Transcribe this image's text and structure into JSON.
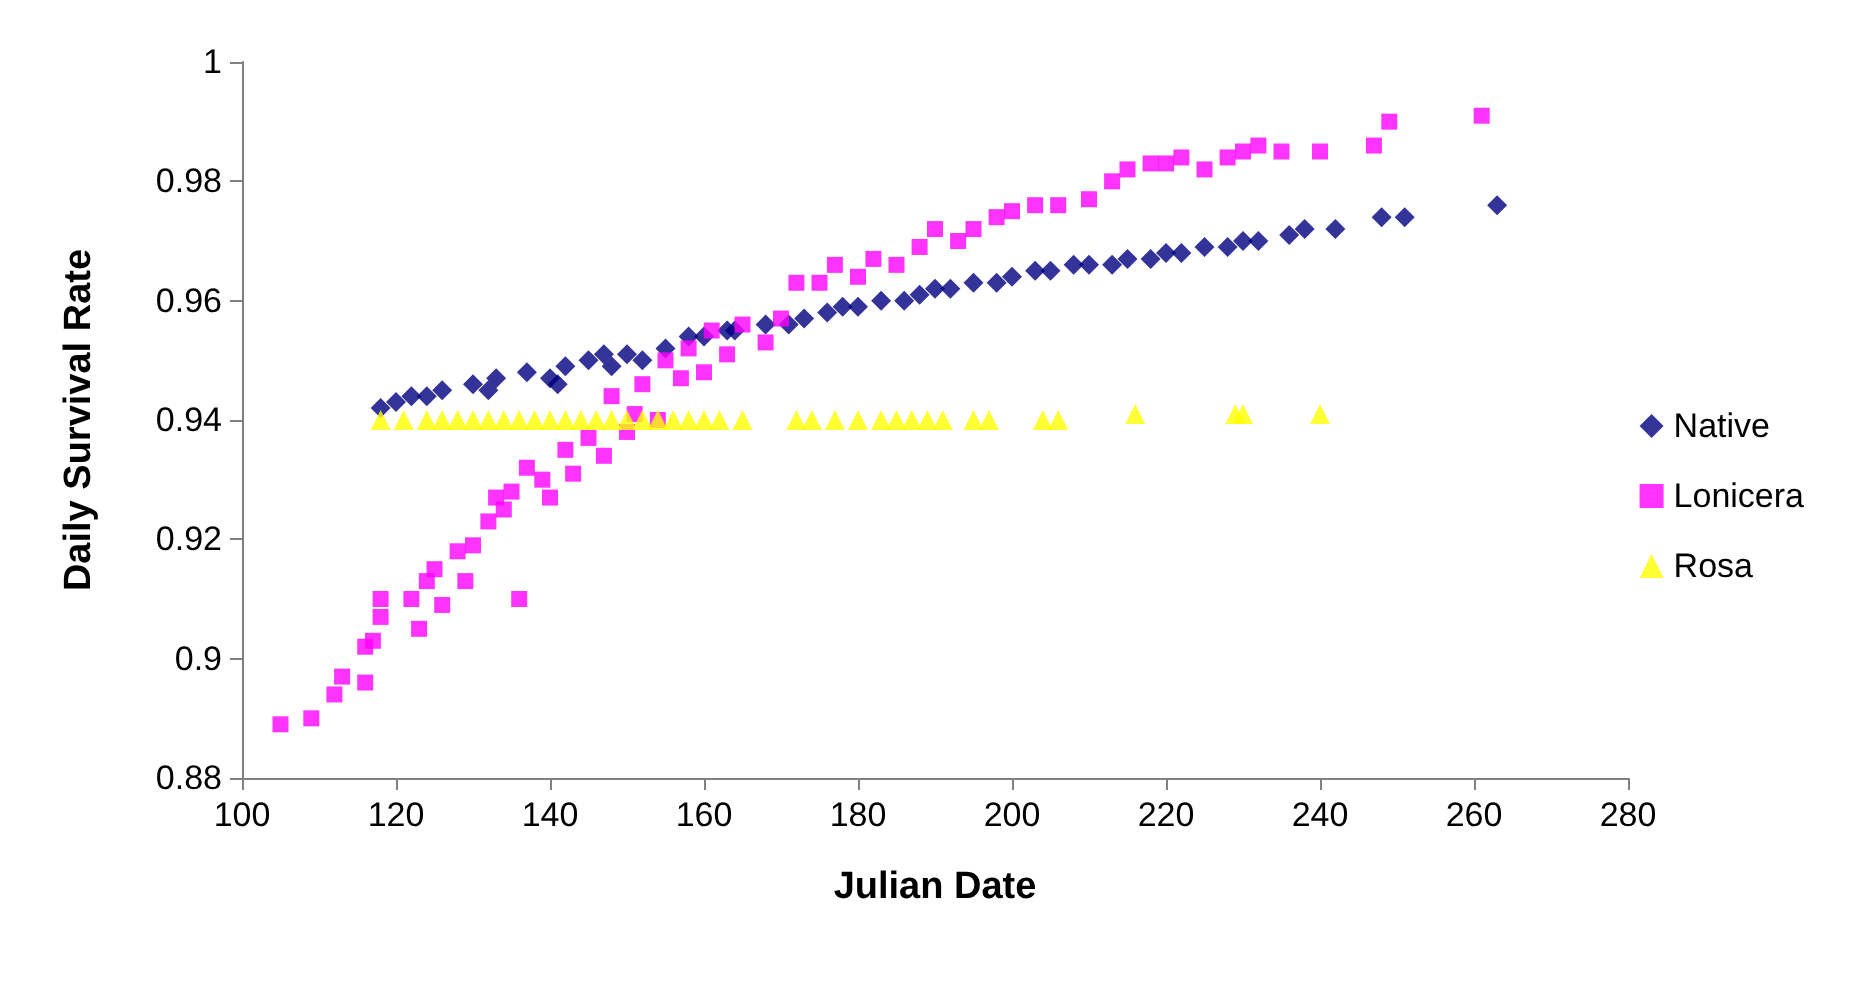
{
  "chart_data": {
    "type": "scatter",
    "xlabel": "Julian Date",
    "ylabel": "Daily Survival Rate",
    "xlim": [
      100,
      280
    ],
    "xticks": [
      100,
      120,
      140,
      160,
      180,
      200,
      220,
      240,
      260,
      280
    ],
    "ylim": [
      0.88,
      1
    ],
    "yticks": [
      0.88,
      0.9,
      0.92,
      0.94,
      0.96,
      0.98,
      1
    ],
    "grid": false,
    "legend": "right",
    "series": [
      {
        "name": "Native",
        "color": "#000080",
        "marker": "diamond",
        "x": [
          118,
          120,
          122,
          124,
          126,
          130,
          132,
          133,
          137,
          140,
          141,
          142,
          145,
          147,
          148,
          150,
          152,
          155,
          158,
          160,
          163,
          164,
          168,
          171,
          173,
          176,
          178,
          180,
          183,
          186,
          188,
          190,
          192,
          195,
          198,
          200,
          203,
          205,
          208,
          210,
          213,
          215,
          218,
          220,
          222,
          225,
          228,
          230,
          232,
          236,
          238,
          242,
          248,
          251,
          263
        ],
        "values": [
          0.942,
          0.943,
          0.944,
          0.944,
          0.945,
          0.946,
          0.945,
          0.947,
          0.948,
          0.947,
          0.946,
          0.949,
          0.95,
          0.951,
          0.949,
          0.951,
          0.95,
          0.952,
          0.954,
          0.954,
          0.955,
          0.955,
          0.956,
          0.956,
          0.957,
          0.958,
          0.959,
          0.959,
          0.96,
          0.96,
          0.961,
          0.962,
          0.962,
          0.963,
          0.963,
          0.964,
          0.965,
          0.965,
          0.966,
          0.966,
          0.966,
          0.967,
          0.967,
          0.968,
          0.968,
          0.969,
          0.969,
          0.97,
          0.97,
          0.971,
          0.972,
          0.972,
          0.974,
          0.974,
          0.976
        ]
      },
      {
        "name": "Lonicera",
        "color": "#ff00ff",
        "marker": "square",
        "x": [
          105,
          109,
          112,
          113,
          116,
          116,
          117,
          118,
          118,
          122,
          123,
          124,
          125,
          126,
          128,
          129,
          130,
          132,
          133,
          134,
          135,
          136,
          137,
          139,
          140,
          142,
          143,
          145,
          147,
          148,
          150,
          151,
          152,
          154,
          155,
          157,
          158,
          160,
          161,
          163,
          165,
          168,
          170,
          172,
          175,
          177,
          180,
          182,
          185,
          188,
          190,
          193,
          195,
          198,
          200,
          203,
          206,
          210,
          213,
          215,
          218,
          220,
          222,
          225,
          228,
          230,
          232,
          235,
          240,
          247,
          249,
          261
        ],
        "values": [
          0.889,
          0.89,
          0.894,
          0.897,
          0.896,
          0.902,
          0.903,
          0.907,
          0.91,
          0.91,
          0.905,
          0.913,
          0.915,
          0.909,
          0.918,
          0.913,
          0.919,
          0.923,
          0.927,
          0.925,
          0.928,
          0.91,
          0.932,
          0.93,
          0.927,
          0.935,
          0.931,
          0.937,
          0.934,
          0.944,
          0.938,
          0.941,
          0.946,
          0.94,
          0.95,
          0.947,
          0.952,
          0.948,
          0.955,
          0.951,
          0.956,
          0.953,
          0.957,
          0.963,
          0.963,
          0.966,
          0.964,
          0.967,
          0.966,
          0.969,
          0.972,
          0.97,
          0.972,
          0.974,
          0.975,
          0.976,
          0.976,
          0.977,
          0.98,
          0.982,
          0.983,
          0.983,
          0.984,
          0.982,
          0.984,
          0.985,
          0.986,
          0.985,
          0.985,
          0.986,
          0.99,
          0.991
        ]
      },
      {
        "name": "Rosa",
        "color": "#ffff00",
        "marker": "triangle",
        "x": [
          118,
          121,
          124,
          126,
          128,
          130,
          132,
          134,
          136,
          138,
          140,
          142,
          144,
          146,
          148,
          150,
          152,
          154,
          156,
          158,
          160,
          162,
          165,
          172,
          174,
          177,
          180,
          183,
          185,
          187,
          189,
          191,
          195,
          197,
          204,
          206,
          216,
          229,
          230,
          240
        ],
        "values": [
          0.94,
          0.94,
          0.94,
          0.94,
          0.94,
          0.94,
          0.94,
          0.94,
          0.94,
          0.94,
          0.94,
          0.94,
          0.94,
          0.94,
          0.94,
          0.94,
          0.94,
          0.94,
          0.94,
          0.94,
          0.94,
          0.94,
          0.94,
          0.94,
          0.94,
          0.94,
          0.94,
          0.94,
          0.94,
          0.94,
          0.94,
          0.94,
          0.94,
          0.94,
          0.94,
          0.94,
          0.941,
          0.941,
          0.941,
          0.941
        ]
      }
    ]
  }
}
